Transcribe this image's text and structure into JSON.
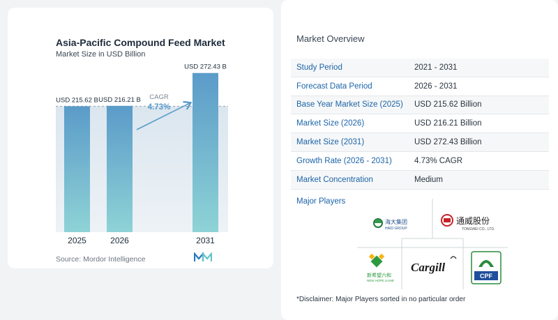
{
  "chart": {
    "source_label": "Source:",
    "source_name": "Mordor Intelligence"
  },
  "chart_data": {
    "type": "bar",
    "title": "Asia-Pacific Compound Feed Market",
    "subtitle": "Market Size in USD Billion",
    "categories": [
      "2025",
      "2026",
      "2031"
    ],
    "values": [
      215.62,
      216.21,
      272.43
    ],
    "value_labels": [
      "USD 215.62 B",
      "USD 216.21 B",
      "USD 272.43 B"
    ],
    "cagr_label": "CAGR",
    "cagr_value": "4.73%",
    "ylim": [
      0,
      290
    ],
    "colors": {
      "bar_top": "#5b9bc9",
      "bar_bottom": "#8ed3d6",
      "arrow": "#5b9bc9",
      "band": "#dfe8f0"
    }
  },
  "overview": {
    "title": "Market Overview",
    "rows": [
      {
        "label": "Study Period",
        "value": "2021 - 2031"
      },
      {
        "label": "Forecast Data Period",
        "value": "2026 - 2031"
      },
      {
        "label": "Base Year Market Size (2025)",
        "value": "USD 215.62 Billion"
      },
      {
        "label": "Market Size (2026)",
        "value": "USD 216.21 Billion"
      },
      {
        "label": "Market Size (2031)",
        "value": "USD 272.43 Billion"
      },
      {
        "label": "Growth Rate (2026 - 2031)",
        "value": "4.73% CAGR"
      },
      {
        "label": "Market Concentration",
        "value": "Medium"
      }
    ],
    "major_players_label": "Major Players",
    "players": [
      {
        "name": "Haid Group",
        "cn": "海大集团",
        "en": "HAID GROUP"
      },
      {
        "name": "Tongwei",
        "cn": "通威股份",
        "en": "TONGWEI CO., LTD."
      },
      {
        "name": "New Hope Liuhe",
        "cn": "新希望六和",
        "en": "NEW HOPE LIUHE"
      },
      {
        "name": "Cargill",
        "en": "Cargill"
      },
      {
        "name": "CPF",
        "en": "CPF"
      }
    ],
    "disclaimer": "*Disclaimer: Major Players sorted in no particular order"
  }
}
